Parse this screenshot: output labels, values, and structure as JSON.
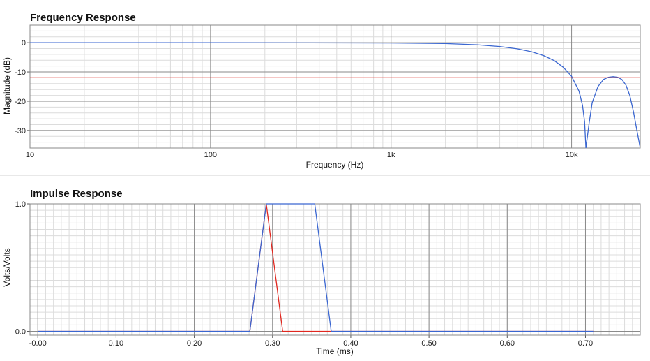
{
  "colors": {
    "background": "#ffffff",
    "grid_minor": "#dcdcdc",
    "grid_major": "#8a8a8a",
    "series_blue": "#3a66d0",
    "series_red": "#e0271f",
    "separator": "#d0d0d0"
  },
  "chart_data": [
    {
      "type": "line",
      "title": "Frequency Response",
      "xlabel": "Frequency (Hz)",
      "ylabel": "Magnitude (dB)",
      "xscale": "log",
      "xlim": [
        10,
        24000
      ],
      "ylim": [
        -36,
        6
      ],
      "x_ticks": [
        10,
        100,
        1000,
        10000
      ],
      "x_tick_labels": [
        "10",
        "100",
        "1k",
        "10k"
      ],
      "y_ticks": [
        0,
        -10,
        -20,
        -30
      ],
      "y_tick_labels": [
        "0",
        "-10",
        "-20",
        "-30"
      ],
      "grid": true,
      "series": [
        {
          "color": "#3a66d0",
          "x": [
            10,
            100,
            1000,
            2000,
            3000,
            4000,
            5000,
            6000,
            7000,
            8000,
            9000,
            10000,
            11000,
            11500,
            11800,
            12000,
            12500,
            13000,
            14000,
            15000,
            16000,
            17000,
            18000,
            19000,
            20000,
            21000,
            22000,
            23000,
            24000
          ],
          "y": [
            0,
            0,
            -0.1,
            -0.3,
            -0.7,
            -1.3,
            -2.1,
            -3.1,
            -4.4,
            -6.1,
            -8.4,
            -11.5,
            -16.6,
            -21.5,
            -27.0,
            -36.0,
            -27.5,
            -20.5,
            -15.0,
            -12.6,
            -11.8,
            -11.6,
            -11.8,
            -12.6,
            -14.5,
            -18.0,
            -23.5,
            -30.0,
            -36.0
          ]
        },
        {
          "color": "#e0271f",
          "x": [
            10,
            24000
          ],
          "y": [
            -12,
            -12
          ]
        }
      ]
    },
    {
      "type": "line",
      "title": "Impulse Response",
      "xlabel": "Time (ms)",
      "ylabel": "Volts/Volts",
      "xlim": [
        -0.01,
        0.77
      ],
      "ylim": [
        -0.03,
        1.0
      ],
      "x_ticks": [
        0,
        0.1,
        0.2,
        0.3,
        0.4,
        0.5,
        0.6,
        0.7
      ],
      "x_tick_labels": [
        "-0.00",
        "0.10",
        "0.20",
        "0.30",
        "0.40",
        "0.50",
        "0.60",
        "0.70"
      ],
      "y_ticks": [
        1.0,
        0.0
      ],
      "y_tick_labels": [
        "1.0",
        "-0.0"
      ],
      "grid": true,
      "series": [
        {
          "color": "#e0271f",
          "x": [
            0,
            0.271,
            0.292,
            0.313,
            0.71
          ],
          "y": [
            0,
            0,
            1.0,
            0,
            0
          ]
        },
        {
          "color": "#3a66d0",
          "x": [
            0,
            0.271,
            0.292,
            0.354,
            0.375,
            0.71
          ],
          "y": [
            0,
            0,
            1.0,
            1.0,
            0,
            0
          ]
        }
      ]
    }
  ]
}
